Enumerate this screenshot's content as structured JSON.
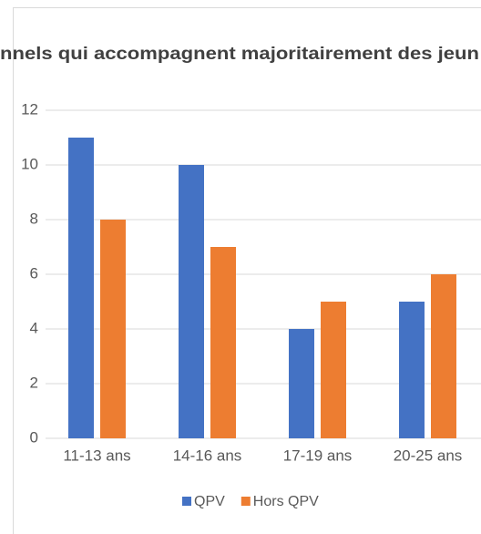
{
  "chart_data": {
    "type": "bar",
    "title": "nnels qui accompagnent majoritairement des jeun",
    "categories": [
      "11-13 ans",
      "14-16 ans",
      "17-19 ans",
      "20-25 ans"
    ],
    "series": [
      {
        "name": "QPV",
        "color": "#4472c4",
        "values": [
          11,
          10,
          4,
          5
        ]
      },
      {
        "name": "Hors QPV",
        "color": "#ed7d31",
        "values": [
          8,
          7,
          5,
          6
        ]
      }
    ],
    "ylim": [
      0,
      12
    ],
    "yticks": [
      0,
      2,
      4,
      6,
      8,
      10,
      12
    ],
    "grid": true,
    "legend": "bottom"
  }
}
